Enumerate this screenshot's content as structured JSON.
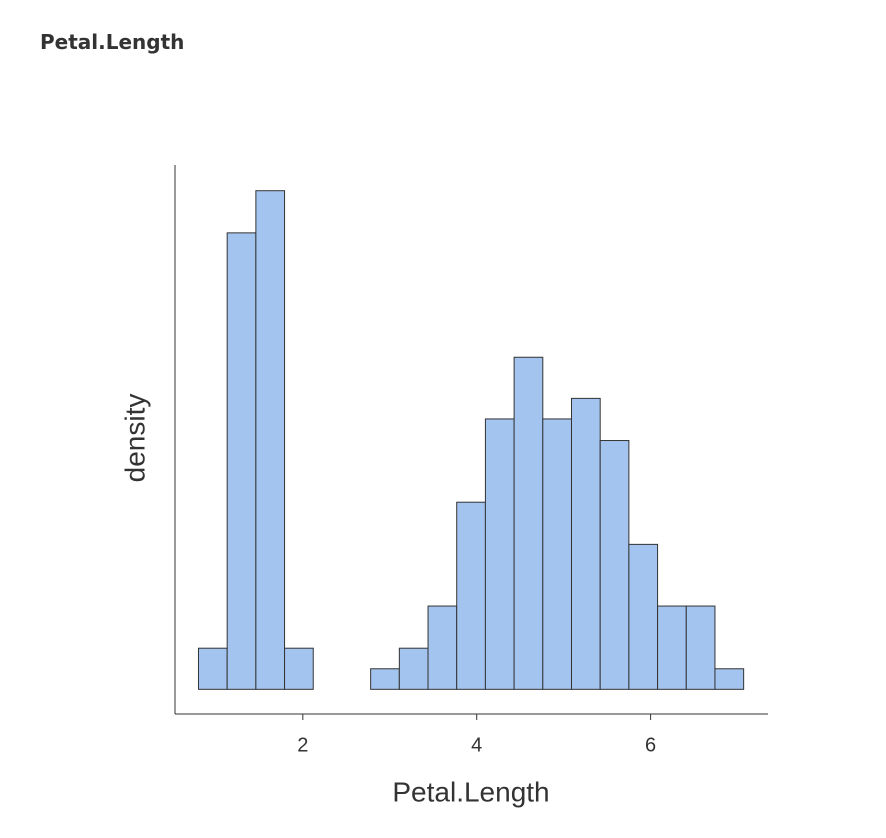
{
  "header": {
    "title": "Petal.Length"
  },
  "chart_data": {
    "type": "histogram",
    "x_label": "Petal.Length",
    "y_label": "density",
    "bins": [
      0.8,
      1.13,
      1.46,
      1.79,
      2.12,
      2.45,
      2.78,
      3.11,
      3.44,
      3.77,
      4.1,
      4.43,
      4.76,
      5.09,
      5.42,
      5.75,
      6.08,
      6.41,
      6.74,
      7.07
    ],
    "values": [
      0.04,
      0.444,
      0.485,
      0.04,
      0,
      0,
      0.02,
      0.04,
      0.081,
      0.182,
      0.263,
      0.323,
      0.263,
      0.283,
      0.242,
      0.141,
      0.081,
      0.081,
      0.02
    ],
    "color": "#a4c4f0",
    "xlim": [
      0.53,
      7.35
    ],
    "xticks": [
      2,
      4,
      6
    ],
    "ylim": [
      -0.024,
      0.51
    ]
  }
}
